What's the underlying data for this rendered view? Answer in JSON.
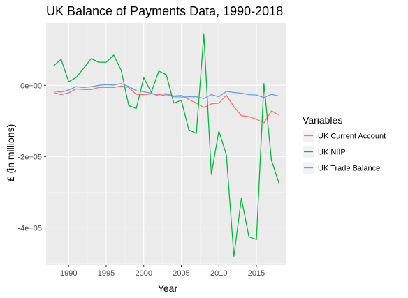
{
  "chart_data": {
    "type": "line",
    "title": "UK Balance of Payments Data, 1990-2018",
    "xlabel": "Year",
    "ylabel": "£ (in millions)",
    "xlim": [
      1987,
      2019
    ],
    "ylim": [
      -505000,
      175000
    ],
    "x_ticks": [
      1990,
      1995,
      2000,
      2005,
      2010,
      2015
    ],
    "x_tick_labels": [
      "1990",
      "1995",
      "2000",
      "2005",
      "2010",
      "2015"
    ],
    "y_ticks": [
      0,
      -200000,
      -400000
    ],
    "y_tick_labels": [
      "0e+00",
      "-2e+05",
      "-4e+05"
    ],
    "legend": {
      "title": "Variables",
      "position": "right"
    },
    "grid": true,
    "background": "#ebebeb",
    "x": [
      1988,
      1989,
      1990,
      1991,
      1992,
      1993,
      1994,
      1995,
      1996,
      1997,
      1998,
      1999,
      2000,
      2001,
      2002,
      2003,
      2004,
      2005,
      2006,
      2007,
      2008,
      2009,
      2010,
      2011,
      2012,
      2013,
      2014,
      2015,
      2016,
      2017,
      2018
    ],
    "series": [
      {
        "name": "UK Current Account",
        "color": "#f8766d",
        "values": [
          -20000,
          -26000,
          -21000,
          -10000,
          -12000,
          -12000,
          -6000,
          -6000,
          -6000,
          -2000,
          -6000,
          -25000,
          -26000,
          -24000,
          -26000,
          -23000,
          -30000,
          -28000,
          -40000,
          -50000,
          -62000,
          -52000,
          -50000,
          -28000,
          -60000,
          -85000,
          -88000,
          -95000,
          -105000,
          -72000,
          -83000
        ]
      },
      {
        "name": "UK NIIP",
        "color": "#00ba38",
        "values": [
          55000,
          73000,
          10000,
          22000,
          48000,
          75000,
          65000,
          65000,
          85000,
          42000,
          -57000,
          -65000,
          22000,
          -20000,
          40000,
          30000,
          -50000,
          -42000,
          -125000,
          -135000,
          143000,
          -250000,
          -128000,
          -195000,
          -480000,
          -317000,
          -425000,
          -433000,
          5000,
          -210000,
          -275000
        ]
      },
      {
        "name": "UK Trade Balance",
        "color": "#619cff",
        "values": [
          -16000,
          -19000,
          -13000,
          -4000,
          -6000,
          -4000,
          0,
          2000,
          1000,
          5000,
          -3000,
          -15000,
          -18000,
          -22000,
          -30000,
          -26000,
          -32000,
          -33000,
          -32000,
          -32000,
          -37000,
          -26000,
          -32000,
          -17000,
          -20000,
          -22000,
          -26000,
          -27000,
          -34000,
          -25000,
          -30000
        ]
      }
    ]
  }
}
